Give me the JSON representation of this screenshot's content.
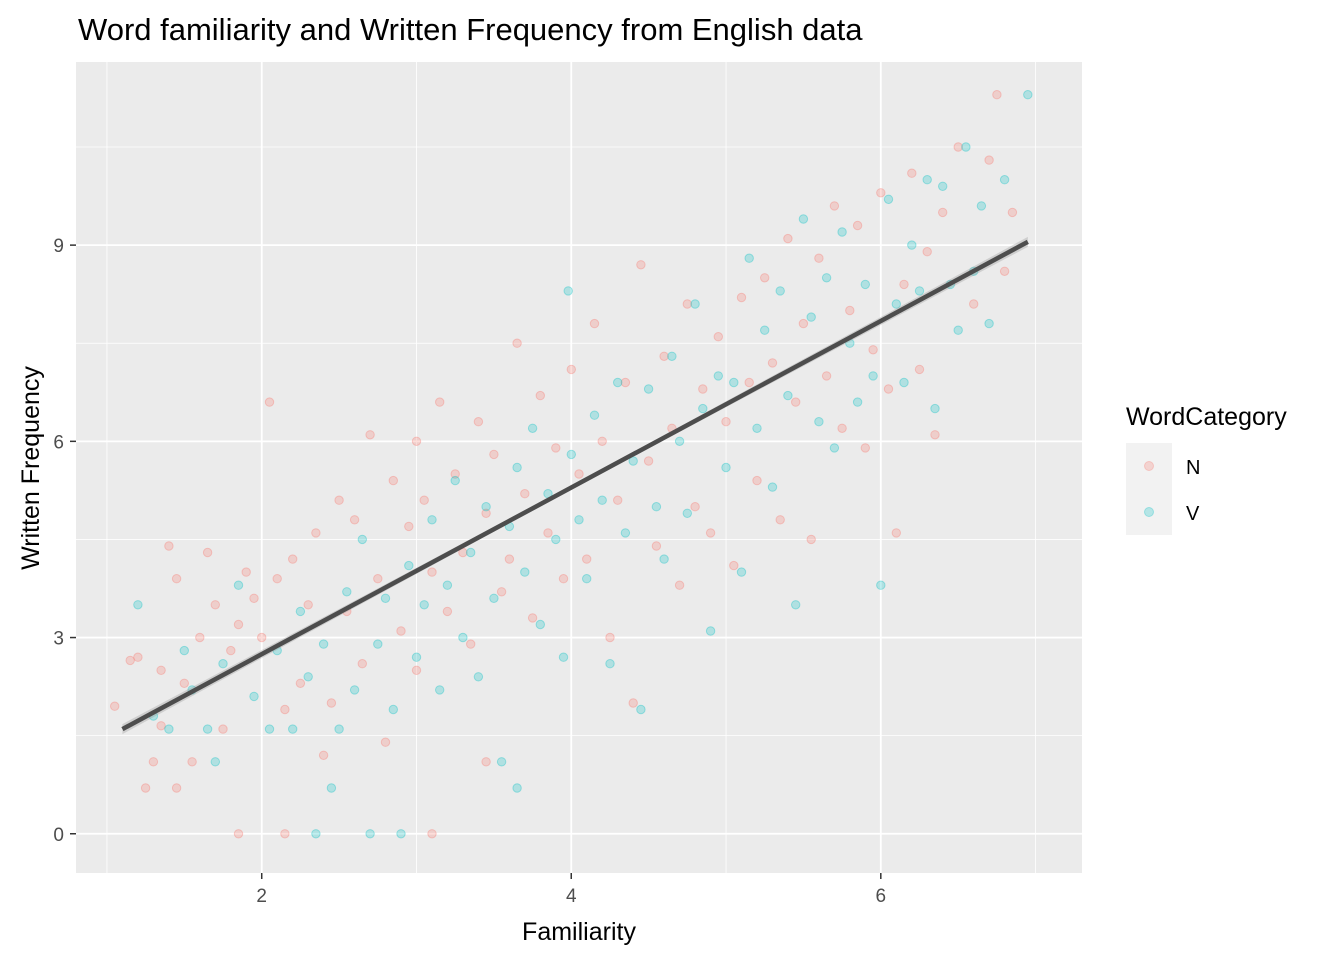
{
  "chart_data": {
    "type": "scatter",
    "title": "Word familiarity and Written Frequency from English data",
    "xlabel": "Familiarity",
    "ylabel": "Written Frequency",
    "xlim": [
      0.8,
      7.3
    ],
    "ylim": [
      -0.6,
      11.8
    ],
    "x_ticks": [
      2,
      4,
      6
    ],
    "y_ticks": [
      0,
      3,
      6,
      9
    ],
    "x_tick_labels": [
      "2",
      "4",
      "6"
    ],
    "y_tick_labels": [
      "0",
      "3",
      "6",
      "9"
    ],
    "grid": true,
    "legend": {
      "title": "WordCategory",
      "placement": "right",
      "entries": [
        "N",
        "V"
      ]
    },
    "colors": {
      "N": "#F8766D",
      "V": "#00BFC4",
      "trend": "#4d4d4d",
      "panel": "#EBEBEB",
      "grid": "#ffffff"
    },
    "point_opacity": 0.25,
    "trend_line": {
      "x": [
        1.1,
        6.95
      ],
      "y": [
        1.6,
        9.05
      ],
      "method": "linear fit with confidence band"
    },
    "series": [
      {
        "name": "N",
        "points": [
          [
            1.05,
            1.95
          ],
          [
            1.15,
            2.65
          ],
          [
            1.2,
            2.7
          ],
          [
            1.25,
            0.7
          ],
          [
            1.3,
            1.1
          ],
          [
            1.35,
            1.65
          ],
          [
            1.35,
            2.5
          ],
          [
            1.4,
            4.4
          ],
          [
            1.45,
            0.7
          ],
          [
            1.45,
            3.9
          ],
          [
            1.5,
            2.3
          ],
          [
            1.55,
            1.1
          ],
          [
            1.6,
            3.0
          ],
          [
            1.65,
            4.3
          ],
          [
            1.7,
            3.5
          ],
          [
            1.75,
            1.6
          ],
          [
            1.8,
            2.8
          ],
          [
            1.85,
            0.0
          ],
          [
            1.85,
            3.2
          ],
          [
            1.9,
            4.0
          ],
          [
            1.95,
            3.6
          ],
          [
            2.0,
            3.0
          ],
          [
            2.05,
            6.6
          ],
          [
            2.1,
            3.9
          ],
          [
            2.15,
            1.9
          ],
          [
            2.15,
            0.0
          ],
          [
            2.2,
            4.2
          ],
          [
            2.25,
            2.3
          ],
          [
            2.3,
            3.5
          ],
          [
            2.35,
            4.6
          ],
          [
            2.4,
            1.2
          ],
          [
            2.45,
            2.0
          ],
          [
            2.5,
            5.1
          ],
          [
            2.55,
            3.4
          ],
          [
            2.6,
            4.8
          ],
          [
            2.65,
            2.6
          ],
          [
            2.7,
            6.1
          ],
          [
            2.75,
            3.9
          ],
          [
            2.8,
            1.4
          ],
          [
            2.85,
            5.4
          ],
          [
            2.9,
            3.1
          ],
          [
            2.95,
            4.7
          ],
          [
            3.0,
            6.0
          ],
          [
            3.0,
            2.5
          ],
          [
            3.05,
            5.1
          ],
          [
            3.1,
            0.0
          ],
          [
            3.1,
            4.0
          ],
          [
            3.15,
            6.6
          ],
          [
            3.2,
            3.4
          ],
          [
            3.25,
            5.5
          ],
          [
            3.3,
            4.3
          ],
          [
            3.35,
            2.9
          ],
          [
            3.4,
            6.3
          ],
          [
            3.45,
            1.1
          ],
          [
            3.45,
            4.9
          ],
          [
            3.5,
            5.8
          ],
          [
            3.55,
            3.7
          ],
          [
            3.6,
            4.2
          ],
          [
            3.65,
            7.5
          ],
          [
            3.7,
            5.2
          ],
          [
            3.75,
            3.3
          ],
          [
            3.8,
            6.7
          ],
          [
            3.85,
            4.6
          ],
          [
            3.9,
            5.9
          ],
          [
            3.95,
            3.9
          ],
          [
            4.0,
            7.1
          ],
          [
            4.05,
            5.5
          ],
          [
            4.1,
            4.2
          ],
          [
            4.15,
            7.8
          ],
          [
            4.2,
            6.0
          ],
          [
            4.25,
            3.0
          ],
          [
            4.3,
            5.1
          ],
          [
            4.35,
            6.9
          ],
          [
            4.4,
            2.0
          ],
          [
            4.45,
            8.7
          ],
          [
            4.5,
            5.7
          ],
          [
            4.55,
            4.4
          ],
          [
            4.6,
            7.3
          ],
          [
            4.65,
            6.2
          ],
          [
            4.7,
            3.8
          ],
          [
            4.75,
            8.1
          ],
          [
            4.8,
            5.0
          ],
          [
            4.85,
            6.8
          ],
          [
            4.9,
            4.6
          ],
          [
            4.95,
            7.6
          ],
          [
            5.0,
            6.3
          ],
          [
            5.05,
            4.1
          ],
          [
            5.1,
            8.2
          ],
          [
            5.15,
            6.9
          ],
          [
            5.2,
            5.4
          ],
          [
            5.25,
            8.5
          ],
          [
            5.3,
            7.2
          ],
          [
            5.35,
            4.8
          ],
          [
            5.4,
            9.1
          ],
          [
            5.45,
            6.6
          ],
          [
            5.5,
            7.8
          ],
          [
            5.55,
            4.5
          ],
          [
            5.6,
            8.8
          ],
          [
            5.65,
            7.0
          ],
          [
            5.7,
            9.6
          ],
          [
            5.75,
            6.2
          ],
          [
            5.8,
            8.0
          ],
          [
            5.85,
            9.3
          ],
          [
            5.9,
            5.9
          ],
          [
            5.95,
            7.4
          ],
          [
            6.0,
            9.8
          ],
          [
            6.05,
            6.8
          ],
          [
            6.1,
            4.6
          ],
          [
            6.15,
            8.4
          ],
          [
            6.2,
            10.1
          ],
          [
            6.25,
            7.1
          ],
          [
            6.3,
            8.9
          ],
          [
            6.35,
            6.1
          ],
          [
            6.4,
            9.5
          ],
          [
            6.5,
            10.5
          ],
          [
            6.6,
            8.1
          ],
          [
            6.7,
            10.3
          ],
          [
            6.75,
            11.3
          ],
          [
            6.8,
            8.6
          ],
          [
            6.85,
            9.5
          ]
        ]
      },
      {
        "name": "V",
        "points": [
          [
            1.2,
            3.5
          ],
          [
            1.3,
            1.8
          ],
          [
            1.4,
            1.6
          ],
          [
            1.5,
            2.8
          ],
          [
            1.55,
            2.2
          ],
          [
            1.65,
            1.6
          ],
          [
            1.7,
            1.1
          ],
          [
            1.75,
            2.6
          ],
          [
            1.85,
            3.8
          ],
          [
            1.95,
            2.1
          ],
          [
            2.05,
            1.6
          ],
          [
            2.1,
            2.8
          ],
          [
            2.2,
            1.6
          ],
          [
            2.25,
            3.4
          ],
          [
            2.3,
            2.4
          ],
          [
            2.35,
            0.0
          ],
          [
            2.4,
            2.9
          ],
          [
            2.45,
            0.7
          ],
          [
            2.5,
            1.6
          ],
          [
            2.55,
            3.7
          ],
          [
            2.6,
            2.2
          ],
          [
            2.65,
            4.5
          ],
          [
            2.7,
            0.0
          ],
          [
            2.75,
            2.9
          ],
          [
            2.8,
            3.6
          ],
          [
            2.85,
            1.9
          ],
          [
            2.9,
            0.0
          ],
          [
            2.95,
            4.1
          ],
          [
            3.0,
            2.7
          ],
          [
            3.05,
            3.5
          ],
          [
            3.1,
            4.8
          ],
          [
            3.15,
            2.2
          ],
          [
            3.2,
            3.8
          ],
          [
            3.25,
            5.4
          ],
          [
            3.3,
            3.0
          ],
          [
            3.35,
            4.3
          ],
          [
            3.4,
            2.4
          ],
          [
            3.45,
            5.0
          ],
          [
            3.5,
            3.6
          ],
          [
            3.55,
            1.1
          ],
          [
            3.6,
            4.7
          ],
          [
            3.65,
            0.7
          ],
          [
            3.65,
            5.6
          ],
          [
            3.7,
            4.0
          ],
          [
            3.75,
            6.2
          ],
          [
            3.8,
            3.2
          ],
          [
            3.85,
            5.2
          ],
          [
            3.9,
            4.5
          ],
          [
            3.95,
            2.7
          ],
          [
            3.98,
            8.3
          ],
          [
            4.0,
            5.8
          ],
          [
            4.05,
            4.8
          ],
          [
            4.1,
            3.9
          ],
          [
            4.15,
            6.4
          ],
          [
            4.2,
            5.1
          ],
          [
            4.25,
            2.6
          ],
          [
            4.3,
            6.9
          ],
          [
            4.35,
            4.6
          ],
          [
            4.4,
            5.7
          ],
          [
            4.45,
            1.9
          ],
          [
            4.5,
            6.8
          ],
          [
            4.55,
            5.0
          ],
          [
            4.6,
            4.2
          ],
          [
            4.65,
            7.3
          ],
          [
            4.7,
            6.0
          ],
          [
            4.75,
            4.9
          ],
          [
            4.8,
            8.1
          ],
          [
            4.85,
            6.5
          ],
          [
            4.9,
            3.1
          ],
          [
            4.95,
            7.0
          ],
          [
            5.0,
            5.6
          ],
          [
            5.05,
            6.9
          ],
          [
            5.1,
            4.0
          ],
          [
            5.15,
            8.8
          ],
          [
            5.2,
            6.2
          ],
          [
            5.25,
            7.7
          ],
          [
            5.3,
            5.3
          ],
          [
            5.35,
            8.3
          ],
          [
            5.4,
            6.7
          ],
          [
            5.45,
            3.5
          ],
          [
            5.5,
            9.4
          ],
          [
            5.55,
            7.9
          ],
          [
            5.6,
            6.3
          ],
          [
            5.65,
            8.5
          ],
          [
            5.7,
            5.9
          ],
          [
            5.75,
            9.2
          ],
          [
            5.8,
            7.5
          ],
          [
            5.85,
            6.6
          ],
          [
            5.9,
            8.4
          ],
          [
            5.95,
            7.0
          ],
          [
            6.0,
            3.8
          ],
          [
            6.05,
            9.7
          ],
          [
            6.1,
            8.1
          ],
          [
            6.15,
            6.9
          ],
          [
            6.2,
            9.0
          ],
          [
            6.25,
            8.3
          ],
          [
            6.3,
            10.0
          ],
          [
            6.35,
            6.5
          ],
          [
            6.4,
            9.9
          ],
          [
            6.45,
            8.4
          ],
          [
            6.5,
            7.7
          ],
          [
            6.55,
            10.5
          ],
          [
            6.6,
            8.6
          ],
          [
            6.65,
            9.6
          ],
          [
            6.7,
            7.8
          ],
          [
            6.8,
            10.0
          ],
          [
            6.95,
            11.3
          ]
        ]
      }
    ]
  }
}
